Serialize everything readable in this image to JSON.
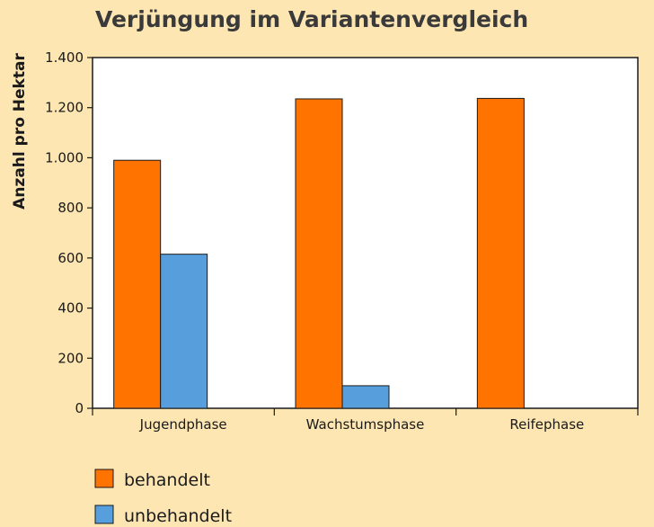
{
  "chart_data": {
    "type": "bar",
    "title": "Verjüngung im Variantenvergleich",
    "ylabel": "Anzahl pro Hektar",
    "xlabel": "",
    "categories": [
      "Jugendphase",
      "Wachstumsphase",
      "Reifephase"
    ],
    "ylim": [
      0,
      1400
    ],
    "yticks": [
      0,
      200,
      400,
      600,
      800,
      1000,
      1200,
      1400
    ],
    "ytick_labels": [
      "0",
      "200",
      "400",
      "600",
      "800",
      "1.000",
      "1.200",
      "1.400"
    ],
    "grid": false,
    "legend_position": "bottom-left",
    "series": [
      {
        "name": "behandelt",
        "color": "#ff7300",
        "values": [
          990,
          1235,
          1237
        ]
      },
      {
        "name": "unbehandelt",
        "color": "#569fdc",
        "values": [
          615,
          90,
          0
        ]
      }
    ]
  }
}
